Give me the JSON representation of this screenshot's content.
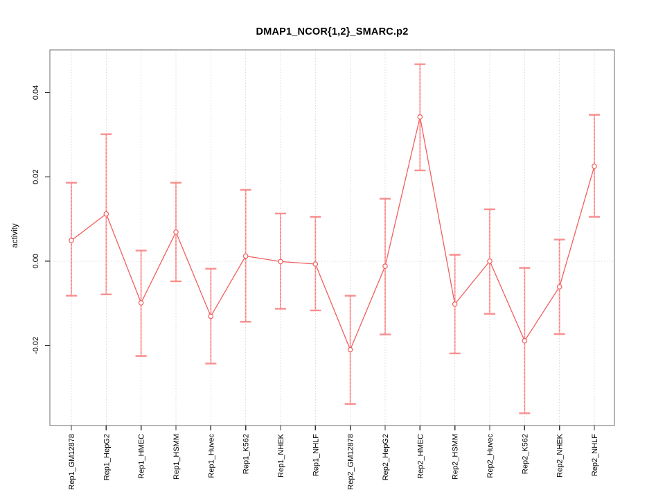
{
  "page": {
    "background": "#ffffff"
  },
  "chart_data": {
    "type": "line",
    "title": "DMAP1_NCOR{1,2}_SMARC.p2",
    "xlabel": "",
    "ylabel": "activity",
    "categories": [
      "Rep1_GM12878",
      "Rep1_HepG2",
      "Rep1_HMEC",
      "Rep1_HSMM",
      "Rep1_Huvec",
      "Rep1_K562",
      "Rep1_NHEK",
      "Rep1_NHLF",
      "Rep2_GM12878",
      "Rep2_HepG2",
      "Rep2_HMEC",
      "Rep2_HSMM",
      "Rep2_Huvec",
      "Rep2_K562",
      "Rep2_NHEK",
      "Rep2_NHLF"
    ],
    "series": [
      {
        "name": "activity",
        "marker": "open-circle",
        "values": [
          0.0049,
          0.0112,
          -0.0099,
          0.0069,
          -0.0131,
          0.0012,
          -0.0001,
          -0.0007,
          -0.021,
          -0.0012,
          0.0342,
          -0.0102,
          0.0,
          -0.0189,
          -0.0061,
          0.0225
        ],
        "upper_ci": [
          0.0186,
          0.0301,
          0.0025,
          0.0186,
          -0.0018,
          0.0169,
          0.0113,
          0.0105,
          -0.0082,
          0.0148,
          0.0467,
          0.0015,
          0.0123,
          -0.0016,
          0.0051,
          0.0347
        ],
        "lower_ci": [
          -0.0082,
          -0.0079,
          -0.0225,
          -0.0048,
          -0.0243,
          -0.0144,
          -0.0113,
          -0.0117,
          -0.0339,
          -0.0174,
          0.0215,
          -0.0219,
          -0.0125,
          -0.0361,
          -0.0173,
          0.0105
        ]
      }
    ],
    "ylim": [
      -0.039,
      0.0501
    ],
    "yticks": [
      -0.02,
      0,
      0.02,
      0.04
    ],
    "ytick_labels": [
      "-0.02",
      "0.00",
      "0.02",
      "0.04"
    ],
    "grid": {
      "vertical": "dotted line at each category",
      "horizontal": "dotted line at y = 0"
    },
    "legend": "none",
    "style": {
      "series_color": "#f15e5e",
      "errorbar_color": "#ffb0b0",
      "errorbar_dash_color": "#f15e5e",
      "crossbar_color": "#f98e8e",
      "marker_fill": "#ffffff",
      "grid_color": "#d8d8d8",
      "axis_box_color": "#6e6e6e",
      "tick_color": "#333333",
      "text_color": "#000000"
    }
  }
}
